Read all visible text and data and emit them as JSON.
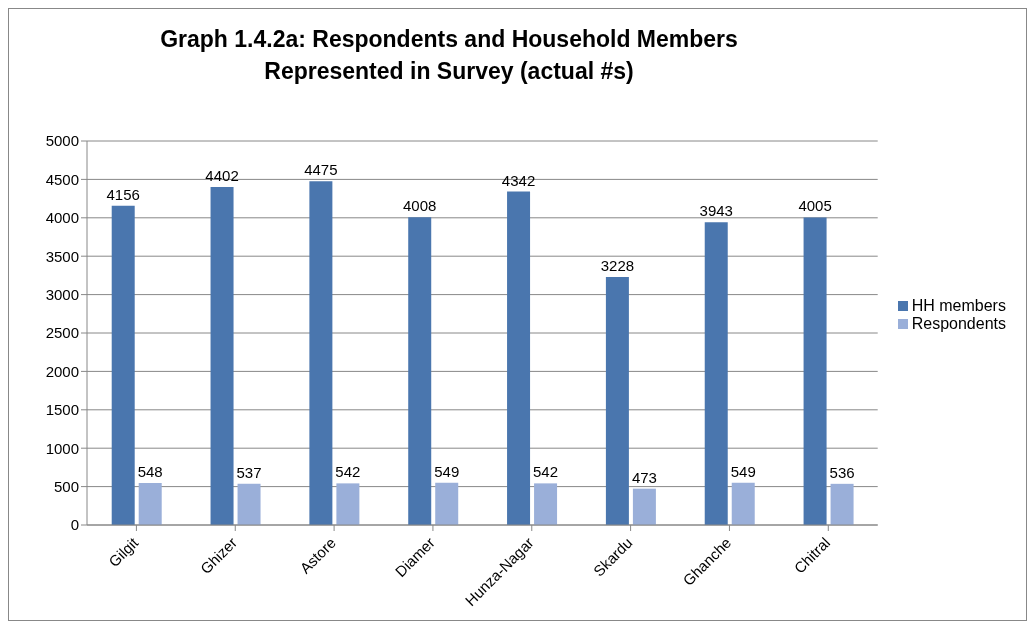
{
  "chart_data": {
    "type": "bar",
    "title": "Graph 1.4.2a:  Respondents and Household Members Represented in Survey (actual #s)",
    "categories": [
      "Gilgit",
      "Ghizer",
      "Astore",
      "Diamer",
      "Hunza-Nagar",
      "Skardu",
      "Ghanche",
      "Chitral"
    ],
    "series": [
      {
        "name": "HH members",
        "color": "#4a76ae",
        "values": [
          4156,
          4402,
          4475,
          4008,
          4342,
          3228,
          3943,
          4005
        ]
      },
      {
        "name": "Respondents",
        "color": "#9aafd9",
        "values": [
          548,
          537,
          542,
          549,
          542,
          473,
          549,
          536
        ]
      }
    ],
    "ylim": [
      0,
      5000
    ],
    "yticks": [
      0,
      500,
      1000,
      1500,
      2000,
      2500,
      3000,
      3500,
      4000,
      4500,
      5000
    ],
    "grid": "y",
    "legend": "right",
    "data_labels": true
  }
}
